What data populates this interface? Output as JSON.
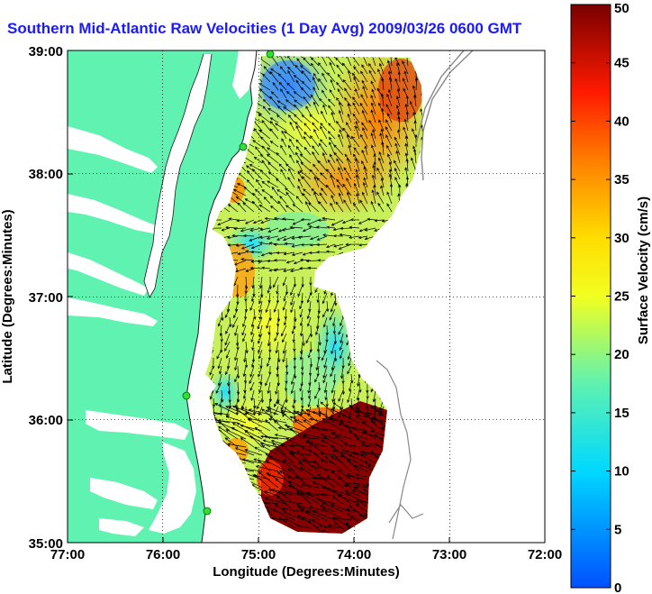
{
  "title": "Southern Mid-Atlantic Raw Velocities (1 Day Avg) 2009/03/26 0600 GMT",
  "xaxis": {
    "label": "Longitude (Degrees:Minutes)",
    "ticks": [
      "77:00",
      "76:00",
      "75:00",
      "74:00",
      "73:00",
      "72:00"
    ]
  },
  "yaxis": {
    "label": "Latitude (Degrees:Minutes)",
    "ticks": [
      "35:00",
      "36:00",
      "37:00",
      "38:00",
      "39:00"
    ]
  },
  "colorbar": {
    "label": "Surface Velocity (cm/s)",
    "ticks": [
      "0",
      "5",
      "10",
      "15",
      "20",
      "25",
      "30",
      "35",
      "40",
      "45",
      "50"
    ],
    "min": 0,
    "max": 50
  },
  "colors": {
    "land": "#5ff2b0",
    "water": "#ffffff",
    "title": "#1a1aff",
    "bathymetry": "#888888",
    "station": "#33dd33"
  },
  "chart_data": {
    "type": "heatmap",
    "title": "Southern Mid-Atlantic Raw Velocities (1 Day Avg) 2009/03/26 0600 GMT",
    "xlabel": "Longitude (Degrees:Minutes)",
    "ylabel": "Latitude (Degrees:Minutes)",
    "xlim": [
      -77,
      -72
    ],
    "ylim": [
      35,
      39
    ],
    "grid": true,
    "zlabel": "Surface Velocity (cm/s)",
    "zlim": [
      0,
      50
    ],
    "velocity_regions": [
      {
        "lon": -74.7,
        "lat": 38.7,
        "speed": 8
      },
      {
        "lon": -74.0,
        "lat": 38.4,
        "speed": 35
      },
      {
        "lon": -74.3,
        "lat": 38.0,
        "speed": 28
      },
      {
        "lon": -75.0,
        "lat": 37.5,
        "speed": 17
      },
      {
        "lon": -75.2,
        "lat": 37.0,
        "speed": 25
      },
      {
        "lon": -74.5,
        "lat": 36.6,
        "speed": 14
      },
      {
        "lon": -75.1,
        "lat": 36.2,
        "speed": 22
      },
      {
        "lon": -74.3,
        "lat": 35.5,
        "speed": 50
      }
    ]
  }
}
